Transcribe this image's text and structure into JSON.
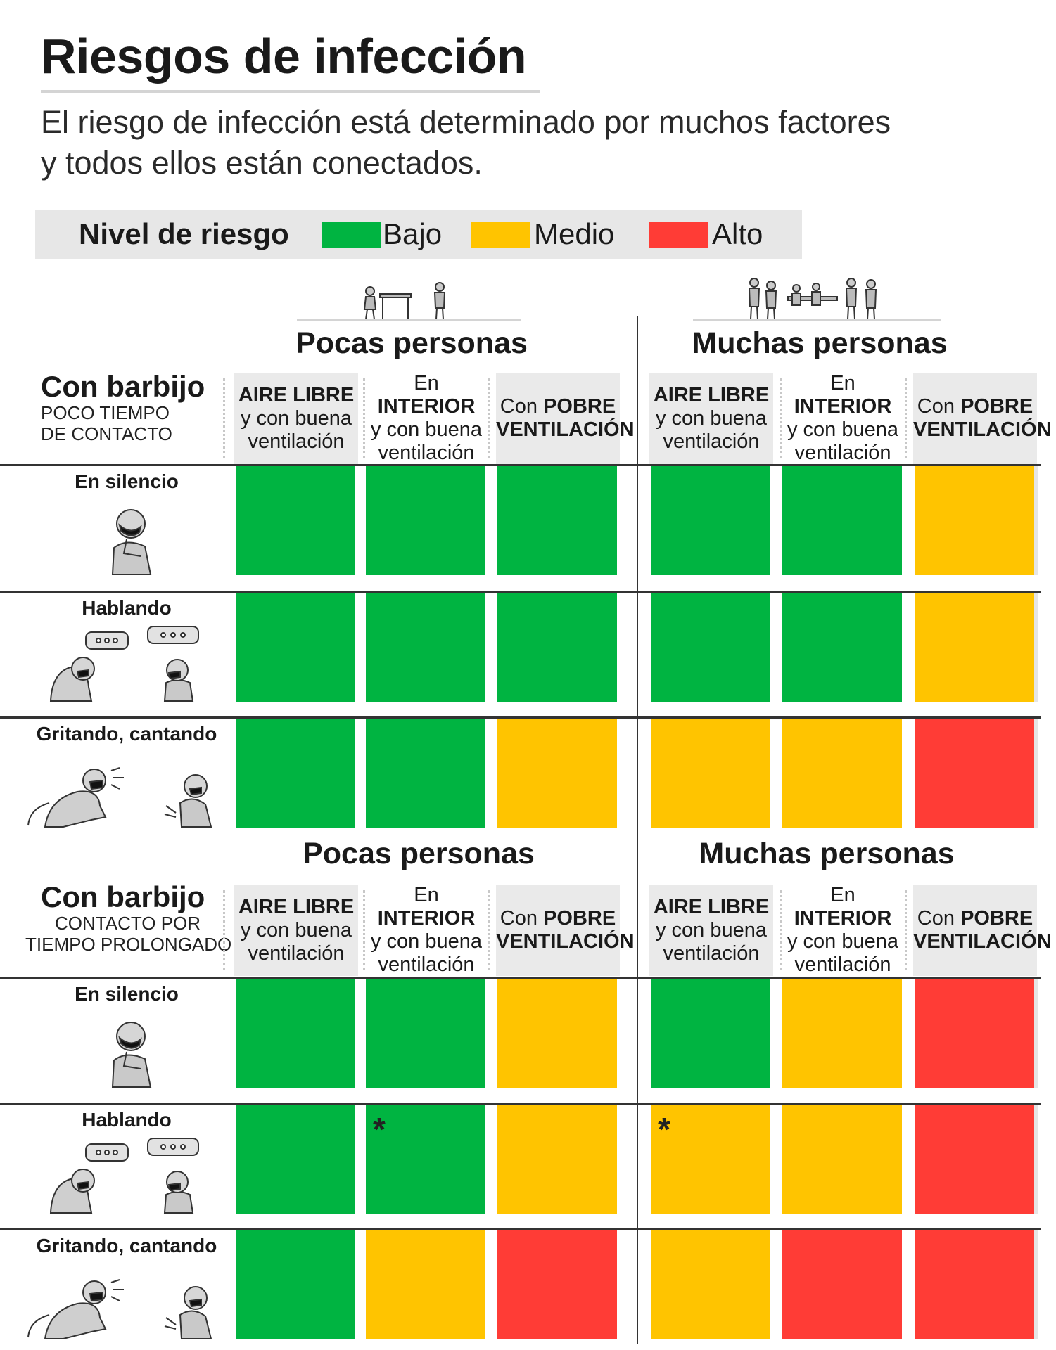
{
  "title": "Riesgos de infección",
  "subtitle_line1": "El riesgo de infección está determinado por muchos factores",
  "subtitle_line2": "y todos ellos están conectados.",
  "legend": {
    "label": "Nivel de riesgo",
    "items": [
      {
        "label": "Bajo",
        "color": "#00b441"
      },
      {
        "label": "Medio",
        "color": "#ffc400"
      },
      {
        "label": "Alto",
        "color": "#ff3c36"
      }
    ]
  },
  "colors": {
    "bajo": "#00b441",
    "medio": "#ffc400",
    "alto": "#ff3c36"
  },
  "column_groups": [
    "Pocas personas",
    "Muchas personas"
  ],
  "columns": [
    {
      "l1_prefix": "",
      "l1_bold": "AIRE LIBRE",
      "l2": "y con buena",
      "l3": "ventilación"
    },
    {
      "l1_prefix": "En ",
      "l1_bold": "INTERIOR",
      "l2": "y con buena",
      "l3": "ventilación"
    },
    {
      "l1_prefix": "Con ",
      "l1_bold": "POBRE",
      "l2_bold": "VENTILACIÓN"
    }
  ],
  "rows": [
    "En silencio",
    "Hablando",
    "Gritando, cantando"
  ],
  "chart_data": [
    {
      "type": "table",
      "title": "Con barbijo",
      "subtitle": [
        "POCO TIEMPO",
        "DE CONTACTO"
      ],
      "group_labels": [
        "Pocas personas",
        "Muchas personas"
      ],
      "rows": [
        "En silencio",
        "Hablando",
        "Gritando, cantando"
      ],
      "values": [
        [
          "Bajo",
          "Bajo",
          "Bajo",
          "Bajo",
          "Bajo",
          "Medio"
        ],
        [
          "Bajo",
          "Bajo",
          "Bajo",
          "Bajo",
          "Bajo",
          "Medio"
        ],
        [
          "Bajo",
          "Bajo",
          "Medio",
          "Medio",
          "Medio",
          "Alto"
        ]
      ],
      "notes": [
        [
          null,
          null,
          null,
          null,
          null,
          null
        ],
        [
          null,
          null,
          null,
          null,
          null,
          null
        ],
        [
          null,
          null,
          null,
          null,
          null,
          null
        ]
      ]
    },
    {
      "type": "table",
      "title": "Con barbijo",
      "subtitle": [
        "CONTACTO POR",
        "TIEMPO PROLONGADO"
      ],
      "group_labels": [
        "Pocas personas",
        "Muchas personas"
      ],
      "rows": [
        "En silencio",
        "Hablando",
        "Gritando, cantando"
      ],
      "values": [
        [
          "Bajo",
          "Bajo",
          "Medio",
          "Bajo",
          "Medio",
          "Alto"
        ],
        [
          "Bajo",
          "Bajo",
          "Medio",
          "Medio",
          "Medio",
          "Alto"
        ],
        [
          "Bajo",
          "Medio",
          "Alto",
          "Medio",
          "Alto",
          "Alto"
        ]
      ],
      "notes": [
        [
          null,
          null,
          null,
          null,
          null,
          null
        ],
        [
          null,
          "*",
          null,
          "*",
          null,
          null
        ],
        [
          null,
          null,
          null,
          null,
          null,
          null
        ]
      ]
    }
  ]
}
